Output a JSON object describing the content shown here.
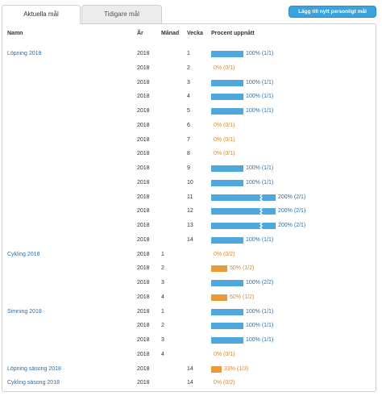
{
  "tabs": [
    {
      "label": "Aktuella mål",
      "active": true
    },
    {
      "label": "Tidigare mål",
      "active": false
    }
  ],
  "add_button_label": "Lägg till nytt personligt mål",
  "columns": {
    "name": "Namn",
    "year": "År",
    "month": "Månad",
    "week": "Vecka",
    "percent": "Procent uppnått"
  },
  "colors": {
    "accent": "#3aa2dc",
    "bar_blue": "#4ea8de",
    "bar_orange": "#e99a3a",
    "link": "#2a6ea8",
    "orange_text": "#e0872a"
  },
  "rows": [
    {
      "name": "Löpning 2018",
      "year": "2018",
      "month": "",
      "week": "1",
      "percent": 1.0,
      "label": "100% (1/1)",
      "status": "done"
    },
    {
      "name": "",
      "year": "2018",
      "month": "",
      "week": "2",
      "percent": 0.0,
      "label": "0% (0/1)",
      "status": "zero"
    },
    {
      "name": "",
      "year": "2018",
      "month": "",
      "week": "3",
      "percent": 1.0,
      "label": "100% (1/1)",
      "status": "done"
    },
    {
      "name": "",
      "year": "2018",
      "month": "",
      "week": "4",
      "percent": 1.0,
      "label": "100% (1/1)",
      "status": "done"
    },
    {
      "name": "",
      "year": "2018",
      "month": "",
      "week": "5",
      "percent": 1.0,
      "label": "100% (1/1)",
      "status": "done"
    },
    {
      "name": "",
      "year": "2018",
      "month": "",
      "week": "6",
      "percent": 0.0,
      "label": "0% (0/1)",
      "status": "zero"
    },
    {
      "name": "",
      "year": "2018",
      "month": "",
      "week": "7",
      "percent": 0.0,
      "label": "0% (0/1)",
      "status": "zero"
    },
    {
      "name": "",
      "year": "2018",
      "month": "",
      "week": "8",
      "percent": 0.0,
      "label": "0% (0/1)",
      "status": "zero"
    },
    {
      "name": "",
      "year": "2018",
      "month": "",
      "week": "9",
      "percent": 1.0,
      "label": "100% (1/1)",
      "status": "done"
    },
    {
      "name": "",
      "year": "2018",
      "month": "",
      "week": "10",
      "percent": 1.0,
      "label": "100% (1/1)",
      "status": "done"
    },
    {
      "name": "",
      "year": "2018",
      "month": "",
      "week": "11",
      "percent": 2.0,
      "label": "200% (2/1)",
      "status": "over"
    },
    {
      "name": "",
      "year": "2018",
      "month": "",
      "week": "12",
      "percent": 2.0,
      "label": "200% (2/1)",
      "status": "over"
    },
    {
      "name": "",
      "year": "2018",
      "month": "",
      "week": "13",
      "percent": 2.0,
      "label": "200% (2/1)",
      "status": "over"
    },
    {
      "name": "",
      "year": "2018",
      "month": "",
      "week": "14",
      "percent": 1.0,
      "label": "100% (1/1)",
      "status": "done"
    },
    {
      "name": "Cykling 2018",
      "year": "2018",
      "month": "1",
      "week": "",
      "percent": 0.0,
      "label": "0% (0/2)",
      "status": "zero"
    },
    {
      "name": "",
      "year": "2018",
      "month": "2",
      "week": "",
      "percent": 0.5,
      "label": "50% (1/2)",
      "status": "partial"
    },
    {
      "name": "",
      "year": "2018",
      "month": "3",
      "week": "",
      "percent": 1.0,
      "label": "100% (2/2)",
      "status": "done"
    },
    {
      "name": "",
      "year": "2018",
      "month": "4",
      "week": "",
      "percent": 0.5,
      "label": "50% (1/2)",
      "status": "partial"
    },
    {
      "name": "Simning 2018",
      "year": "2018",
      "month": "1",
      "week": "",
      "percent": 1.0,
      "label": "100% (1/1)",
      "status": "done"
    },
    {
      "name": "",
      "year": "2018",
      "month": "2",
      "week": "",
      "percent": 1.0,
      "label": "100% (1/1)",
      "status": "done"
    },
    {
      "name": "",
      "year": "2018",
      "month": "3",
      "week": "",
      "percent": 1.0,
      "label": "100% (1/1)",
      "status": "done"
    },
    {
      "name": "",
      "year": "2018",
      "month": "4",
      "week": "",
      "percent": 0.0,
      "label": "0% (0/1)",
      "status": "zero"
    },
    {
      "name": "Löpning säsong 2018",
      "year": "2018",
      "month": "",
      "week": "14",
      "percent": 0.33,
      "label": "33% (1/3)",
      "status": "partial"
    },
    {
      "name": "Cykling säsong 2018",
      "year": "2018",
      "month": "",
      "week": "14",
      "percent": 0.0,
      "label": "0% (0/2)",
      "status": "zero"
    }
  ]
}
